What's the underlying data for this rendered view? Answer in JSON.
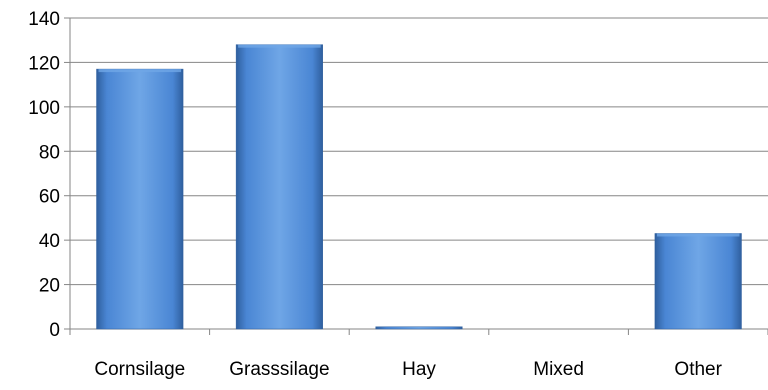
{
  "chart_data": {
    "type": "bar",
    "categories": [
      "Cornsilage",
      "Grasssilage",
      "Hay",
      "Mixed",
      "Other"
    ],
    "values": [
      117,
      128,
      1,
      0,
      43
    ],
    "title": "",
    "xlabel": "",
    "ylabel": "",
    "ylim": [
      0,
      140
    ],
    "yticks": [
      0,
      20,
      40,
      60,
      80,
      100,
      120,
      140
    ],
    "grid": true,
    "legend": "none",
    "colors": {
      "bar": "#4a86d4",
      "bar_dark": "#2f5f9e",
      "bar_light": "#6fa6e6",
      "grid": "#868686",
      "axis": "#868686"
    }
  }
}
